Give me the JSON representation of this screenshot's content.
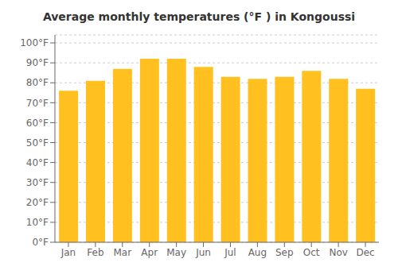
{
  "chart_data": {
    "type": "bar",
    "title": "Average monthly temperatures (°F ) in Kongoussi",
    "categories": [
      "Jan",
      "Feb",
      "Mar",
      "Apr",
      "May",
      "Jun",
      "Jul",
      "Aug",
      "Sep",
      "Oct",
      "Nov",
      "Dec"
    ],
    "values": [
      76,
      81,
      87,
      92,
      92,
      88,
      83,
      82,
      83,
      86,
      82,
      77
    ],
    "color": "#FFC020",
    "ylim": [
      0,
      104
    ],
    "yticks": [
      {
        "value": 0,
        "label": "0°F"
      },
      {
        "value": 10,
        "label": "10°F"
      },
      {
        "value": 20,
        "label": "20°F"
      },
      {
        "value": 30,
        "label": "30°F"
      },
      {
        "value": 40,
        "label": "40°F"
      },
      {
        "value": 50,
        "label": "50°F"
      },
      {
        "value": 60,
        "label": "60°F"
      },
      {
        "value": 70,
        "label": "70°F"
      },
      {
        "value": 80,
        "label": "80°F"
      },
      {
        "value": 90,
        "label": "90°F"
      },
      {
        "value": 100,
        "label": "100°F"
      }
    ],
    "grid": true
  }
}
